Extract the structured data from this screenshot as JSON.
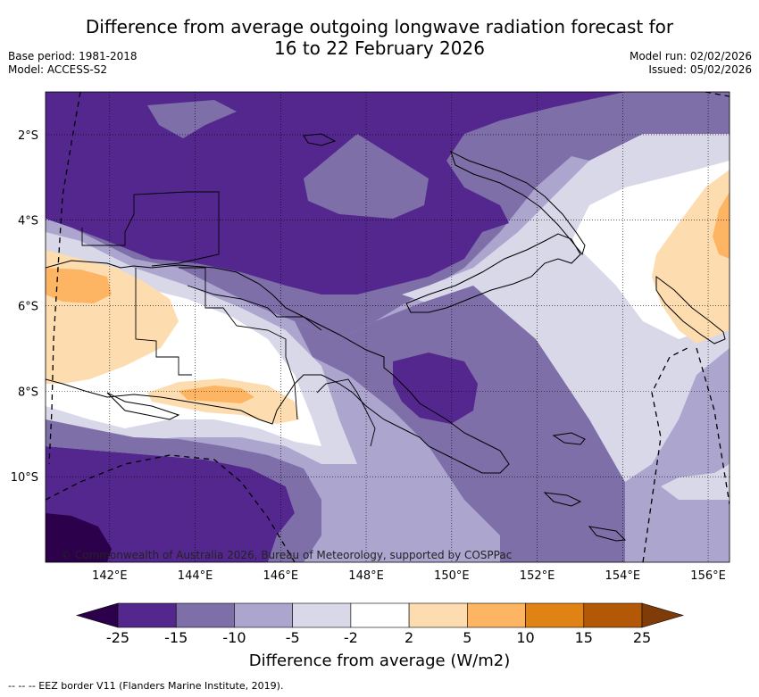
{
  "title_line1": "Difference from average outgoing longwave radiation forecast for",
  "title_line2": "16 to 22 February 2026",
  "base_period": "Base period: 1981-2018",
  "model": "Model: ACCESS-S2",
  "model_run": "Model run: 02/02/2026",
  "issued": "Issued: 05/02/2026",
  "copyright": "© Commonwealth of Australia 2026, Bureau of Meteorology, supported by COSPPac",
  "footer": "--  --  -- EEZ border V11 (Flanders Marine Institute, 2019).",
  "map_extent": {
    "lon_min": 140.5,
    "lon_max": 156.5,
    "lat_min": -12.0,
    "lat_max": -1.0
  },
  "lon_ticks": [
    {
      "value": 142,
      "label": "142°E"
    },
    {
      "value": 144,
      "label": "144°E"
    },
    {
      "value": 146,
      "label": "146°E"
    },
    {
      "value": 148,
      "label": "148°E"
    },
    {
      "value": 150,
      "label": "150°E"
    },
    {
      "value": 152,
      "label": "152°E"
    },
    {
      "value": 154,
      "label": "154°E"
    },
    {
      "value": 156,
      "label": "156°E"
    }
  ],
  "lat_ticks": [
    {
      "value": -2,
      "label": "2°S"
    },
    {
      "value": -4,
      "label": "4°S"
    },
    {
      "value": -6,
      "label": "6°S"
    },
    {
      "value": -8,
      "label": "8°S"
    },
    {
      "value": -10,
      "label": "10°S"
    }
  ],
  "colorbar": {
    "title": "Difference from average (W/m2)",
    "bins": [
      {
        "from": -25,
        "to": -15,
        "color": "#54278f"
      },
      {
        "from": -15,
        "to": -10,
        "color": "#7e6fa8"
      },
      {
        "from": -10,
        "to": -5,
        "color": "#aca6cf"
      },
      {
        "from": -5,
        "to": -2,
        "color": "#d8d8e9"
      },
      {
        "from": -2,
        "to": 2,
        "color": "#ffffff"
      },
      {
        "from": 2,
        "to": 5,
        "color": "#fdddb0"
      },
      {
        "from": 5,
        "to": 10,
        "color": "#fdb463"
      },
      {
        "from": 10,
        "to": 15,
        "color": "#e08214"
      },
      {
        "from": 15,
        "to": 25,
        "color": "#b35806"
      }
    ],
    "under_color": "#2d004b",
    "over_color": "#7f3b08",
    "tick_labels": [
      "-25",
      "-15",
      "-10",
      "-5",
      "-2",
      "2",
      "5",
      "10",
      "15",
      "25"
    ]
  }
}
